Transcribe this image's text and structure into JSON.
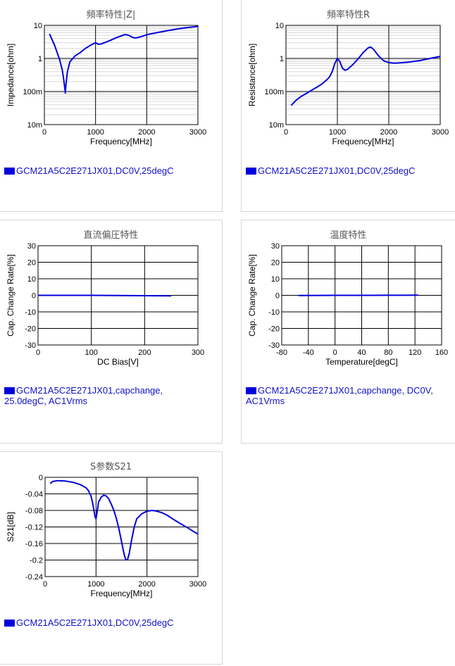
{
  "charts": [
    {
      "id": "c0",
      "title": "頻率特性|Z|",
      "legend": "GCM21A5C2E271JX01,DC0V,25degC",
      "chart_data": {
        "type": "line",
        "title": "頻率特性|Z|",
        "xlabel": "Frequency[MHz]",
        "ylabel": "Impedance[ohm]",
        "xlim": [
          0,
          3000
        ],
        "ylim": [
          0.01,
          10
        ],
        "yscale": "log",
        "grid": true,
        "x_ticks": [
          0,
          1000,
          2000,
          3000
        ],
        "x_tick_labels": [
          "0",
          "1000",
          "2000",
          "3000"
        ],
        "y_ticks": [
          10,
          1,
          0.1,
          0.01
        ],
        "y_tick_labels": [
          "10",
          "1",
          "100m",
          "10m"
        ],
        "series": [
          {
            "color": "#0000dd",
            "x": [
              100,
              200,
              300,
              350,
              380,
              400,
              410,
              420,
              450,
              500,
              600,
              700,
              800,
              900,
              1000,
              1050,
              1100,
              1200,
              1300,
              1400,
              1500,
              1580,
              1650,
              1700,
              1750,
              1800,
              1900,
              2000,
              2200,
              2400,
              2600,
              2800,
              3000
            ],
            "y": [
              5.5,
              2.5,
              0.9,
              0.45,
              0.22,
              0.12,
              0.09,
              0.15,
              0.4,
              0.8,
              1.2,
              1.5,
              2.0,
              2.5,
              3.0,
              2.7,
              2.7,
              3.1,
              3.6,
              4.2,
              4.8,
              5.3,
              5.0,
              4.5,
              4.2,
              4.2,
              4.6,
              5.2,
              6.0,
              6.9,
              7.8,
              8.6,
              9.3
            ]
          }
        ]
      }
    },
    {
      "id": "c1",
      "title": "頻率特性R",
      "legend": "GCM21A5C2E271JX01,DC0V,25degC",
      "chart_data": {
        "type": "line",
        "title": "頻率特性R",
        "xlabel": "Frequency[MHz]",
        "ylabel": "Resistance[ohm]",
        "xlim": [
          0,
          3000
        ],
        "ylim": [
          0.01,
          10
        ],
        "yscale": "log",
        "grid": true,
        "x_ticks": [
          0,
          1000,
          2000,
          3000
        ],
        "x_tick_labels": [
          "0",
          "1000",
          "2000",
          "3000"
        ],
        "y_ticks": [
          10,
          1,
          0.1,
          0.01
        ],
        "y_tick_labels": [
          "10",
          "1",
          "100m",
          "10m"
        ],
        "series": [
          {
            "color": "#0000dd",
            "x": [
              100,
              200,
              300,
              400,
              500,
              600,
              700,
              800,
              850,
              900,
              950,
              1000,
              1050,
              1100,
              1150,
              1200,
              1300,
              1400,
              1500,
              1600,
              1650,
              1700,
              1800,
              1900,
              2000,
              2100,
              2200,
              2400,
              2600,
              2800,
              3000
            ],
            "y": [
              0.038,
              0.055,
              0.072,
              0.088,
              0.11,
              0.135,
              0.17,
              0.23,
              0.28,
              0.4,
              0.7,
              1.0,
              0.8,
              0.5,
              0.44,
              0.47,
              0.65,
              0.95,
              1.5,
              2.1,
              2.2,
              1.9,
              1.2,
              0.85,
              0.75,
              0.72,
              0.73,
              0.78,
              0.86,
              1.0,
              1.15
            ]
          }
        ]
      }
    },
    {
      "id": "c2",
      "title": "直流偏圧特性",
      "legend": "GCM21A5C2E271JX01,capchange, 25.0degC, AC1Vrms",
      "chart_data": {
        "type": "line",
        "title": "直流偏圧特性",
        "xlabel": "DC Bias[V]",
        "ylabel": "Cap. Change Rate[%]",
        "xlim": [
          0,
          300
        ],
        "ylim": [
          -30,
          30
        ],
        "grid": true,
        "x_ticks": [
          0,
          100,
          200,
          300
        ],
        "x_tick_labels": [
          "0",
          "100",
          "200",
          "300"
        ],
        "y_ticks": [
          30,
          20,
          10,
          0,
          -10,
          -20,
          -30
        ],
        "y_tick_labels": [
          "30",
          "20",
          "10",
          "0",
          "-10",
          "-20",
          "-30"
        ],
        "series": [
          {
            "color": "#0000dd",
            "x": [
              0,
              50,
              100,
              150,
              200,
              250
            ],
            "y": [
              0,
              0,
              0,
              -0.1,
              -0.2,
              -0.3
            ]
          }
        ]
      }
    },
    {
      "id": "c3",
      "title": "温度特性",
      "legend": "GCM21A5C2E271JX01,capchange, DC0V, AC1Vrms",
      "chart_data": {
        "type": "line",
        "title": "温度特性",
        "xlabel": "Temperature[degC]",
        "ylabel": "Cap. Change Rate[%]",
        "xlim": [
          -80,
          160
        ],
        "ylim": [
          -30,
          30
        ],
        "grid": true,
        "x_ticks": [
          -80,
          -40,
          0,
          40,
          80,
          120,
          160
        ],
        "x_tick_labels": [
          "-80",
          "-40",
          "0",
          "40",
          "80",
          "120",
          "160"
        ],
        "y_ticks": [
          30,
          20,
          10,
          0,
          -10,
          -20,
          -30
        ],
        "y_tick_labels": [
          "30",
          "20",
          "10",
          "0",
          "-10",
          "-20",
          "-30"
        ],
        "series": [
          {
            "color": "#0000dd",
            "x": [
              -55,
              -25,
              0,
              25,
              50,
              75,
              100,
              125
            ],
            "y": [
              -0.1,
              -0.05,
              0,
              0,
              0,
              0.05,
              0.05,
              0.1
            ]
          }
        ]
      }
    },
    {
      "id": "c4",
      "title": "S参数S21",
      "legend": "GCM21A5C2E271JX01,DC0V,25degC",
      "chart_data": {
        "type": "line",
        "title": "S参数S21",
        "xlabel": "Frequency[MHz]",
        "ylabel": "S21[dB]",
        "xlim": [
          0,
          3000
        ],
        "ylim": [
          -0.24,
          0
        ],
        "grid": true,
        "x_ticks": [
          0,
          1000,
          2000,
          3000
        ],
        "x_tick_labels": [
          "0",
          "1000",
          "2000",
          "3000"
        ],
        "y_ticks": [
          0,
          -0.04,
          -0.08,
          -0.12,
          -0.16,
          -0.2,
          -0.24
        ],
        "y_tick_labels": [
          "0",
          "-0.04",
          "-0.08",
          "-0.12",
          "-0.16",
          "-0.2",
          "-0.24"
        ],
        "series": [
          {
            "color": "#0000dd",
            "x": [
              100,
              150,
              250,
              400,
              550,
              700,
              800,
              850,
              900,
              930,
              960,
              980,
              1000,
              1020,
              1050,
              1100,
              1150,
              1200,
              1250,
              1300,
              1350,
              1400,
              1450,
              1500,
              1550,
              1580,
              1600,
              1620,
              1650,
              1700,
              1750,
              1800,
              1900,
              2000,
              2100,
              2200,
              2300,
              2400,
              2500,
              2600,
              2700,
              2800,
              2900,
              3000
            ],
            "y": [
              -0.015,
              -0.01,
              -0.008,
              -0.009,
              -0.012,
              -0.018,
              -0.025,
              -0.032,
              -0.045,
              -0.06,
              -0.08,
              -0.095,
              -0.1,
              -0.085,
              -0.06,
              -0.048,
              -0.043,
              -0.045,
              -0.052,
              -0.065,
              -0.08,
              -0.1,
              -0.125,
              -0.155,
              -0.185,
              -0.198,
              -0.2,
              -0.198,
              -0.185,
              -0.15,
              -0.12,
              -0.1,
              -0.088,
              -0.082,
              -0.08,
              -0.082,
              -0.086,
              -0.092,
              -0.1,
              -0.108,
              -0.115,
              -0.122,
              -0.13,
              -0.137
            ]
          }
        ]
      }
    }
  ]
}
